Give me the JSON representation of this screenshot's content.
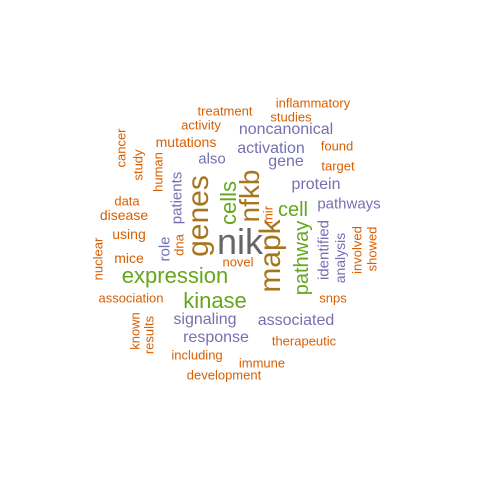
{
  "colors": {
    "orange": "#D95F02",
    "purple": "#7570B3",
    "green": "#66A61E",
    "brown": "#A6761D",
    "gray": "#666666"
  },
  "words": [
    {
      "text": "nik",
      "color": "gray"
    },
    {
      "text": "genes",
      "color": "brown"
    },
    {
      "text": "mapk",
      "color": "brown"
    },
    {
      "text": "nfkb",
      "color": "brown"
    },
    {
      "text": "expression",
      "color": "green"
    },
    {
      "text": "kinase",
      "color": "green"
    },
    {
      "text": "cells",
      "color": "green"
    },
    {
      "text": "pathway",
      "color": "green"
    },
    {
      "text": "cell",
      "color": "green"
    },
    {
      "text": "signaling",
      "color": "purple"
    },
    {
      "text": "associated",
      "color": "purple"
    },
    {
      "text": "response",
      "color": "purple"
    },
    {
      "text": "protein",
      "color": "purple"
    },
    {
      "text": "pathways",
      "color": "purple"
    },
    {
      "text": "activation",
      "color": "purple"
    },
    {
      "text": "noncanonical",
      "color": "purple"
    },
    {
      "text": "gene",
      "color": "purple"
    },
    {
      "text": "also",
      "color": "purple"
    },
    {
      "text": "patients",
      "color": "purple"
    },
    {
      "text": "identified",
      "color": "purple"
    },
    {
      "text": "analysis",
      "color": "purple"
    },
    {
      "text": "role",
      "color": "purple"
    },
    {
      "text": "mutations",
      "color": "orange"
    },
    {
      "text": "treatment",
      "color": "orange"
    },
    {
      "text": "inflammatory",
      "color": "orange"
    },
    {
      "text": "activity",
      "color": "orange"
    },
    {
      "text": "studies",
      "color": "orange"
    },
    {
      "text": "found",
      "color": "orange"
    },
    {
      "text": "target",
      "color": "orange"
    },
    {
      "text": "human",
      "color": "orange"
    },
    {
      "text": "study",
      "color": "orange"
    },
    {
      "text": "cancer",
      "color": "orange"
    },
    {
      "text": "data",
      "color": "orange"
    },
    {
      "text": "disease",
      "color": "orange"
    },
    {
      "text": "using",
      "color": "orange"
    },
    {
      "text": "mice",
      "color": "orange"
    },
    {
      "text": "dna",
      "color": "orange"
    },
    {
      "text": "mir",
      "color": "orange"
    },
    {
      "text": "novel",
      "color": "orange"
    },
    {
      "text": "involved",
      "color": "orange"
    },
    {
      "text": "showed",
      "color": "orange"
    },
    {
      "text": "nuclear",
      "color": "orange"
    },
    {
      "text": "association",
      "color": "orange"
    },
    {
      "text": "snps",
      "color": "orange"
    },
    {
      "text": "therapeutic",
      "color": "orange"
    },
    {
      "text": "including",
      "color": "orange"
    },
    {
      "text": "immune",
      "color": "orange"
    },
    {
      "text": "development",
      "color": "orange"
    },
    {
      "text": "known",
      "color": "orange"
    },
    {
      "text": "results",
      "color": "orange"
    }
  ]
}
